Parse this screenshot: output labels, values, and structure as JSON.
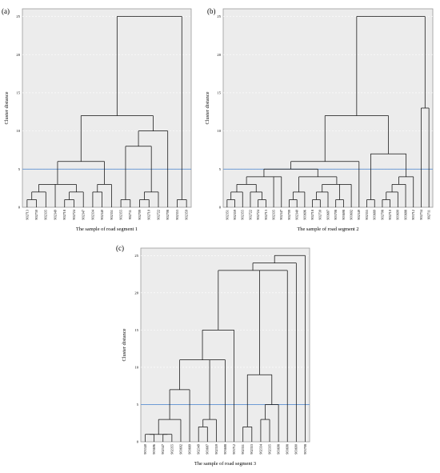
{
  "chart_data": [
    {
      "panel": "(a)",
      "type": "dendrogram",
      "title": "",
      "xlabel": "The sample of road segment 1",
      "ylabel": "Cluster distance",
      "ylim": [
        0,
        26
      ],
      "yticks": [
        0,
        5,
        10,
        15,
        20,
        25
      ],
      "cut_line": 5,
      "leaves": [
        "902713",
        "902730",
        "902335",
        "902349",
        "902718",
        "902724",
        "902347",
        "902334",
        "902340",
        "902351",
        "902355",
        "902711",
        "902709",
        "902710",
        "902722",
        "902708",
        "902353",
        "902359"
      ],
      "merges": [
        {
          "height": 1,
          "groups": [
            [
              0,
              0
            ],
            [
              1,
              1
            ]
          ]
        },
        {
          "height": 2,
          "groups": [
            [
              2,
              2
            ],
            [
              0,
              1
            ]
          ]
        },
        {
          "height": 1,
          "groups": [
            [
              4,
              4
            ],
            [
              5,
              5
            ]
          ]
        },
        {
          "height": 2,
          "groups": [
            [
              4,
              5
            ],
            [
              6,
              6
            ]
          ]
        },
        {
          "height": 3,
          "groups": [
            [
              0,
              2
            ],
            [
              3,
              3
            ],
            [
              4,
              6
            ]
          ]
        },
        {
          "height": 2,
          "groups": [
            [
              7,
              7
            ],
            [
              8,
              8
            ]
          ]
        },
        {
          "height": 3,
          "groups": [
            [
              7,
              8
            ],
            [
              9,
              9
            ]
          ]
        },
        {
          "height": 6,
          "groups": [
            [
              0,
              6
            ],
            [
              7,
              9
            ]
          ]
        },
        {
          "height": 1,
          "groups": [
            [
              12,
              12
            ],
            [
              13,
              13
            ]
          ]
        },
        {
          "height": 2,
          "groups": [
            [
              12,
              13
            ],
            [
              14,
              14
            ]
          ]
        },
        {
          "height": 1,
          "groups": [
            [
              10,
              10
            ],
            [
              11,
              11
            ]
          ]
        },
        {
          "height": 8,
          "groups": [
            [
              10,
              11
            ],
            [
              12,
              14
            ]
          ]
        },
        {
          "height": 10,
          "groups": [
            [
              10,
              14
            ],
            [
              15,
              15
            ]
          ]
        },
        {
          "height": 12,
          "groups": [
            [
              0,
              9
            ],
            [
              10,
              15
            ]
          ]
        },
        {
          "height": 1,
          "groups": [
            [
              16,
              16
            ],
            [
              17,
              17
            ]
          ]
        },
        {
          "height": 25,
          "groups": [
            [
              0,
              15
            ],
            [
              16,
              17
            ]
          ]
        }
      ]
    },
    {
      "panel": "(b)",
      "type": "dendrogram",
      "title": "",
      "xlabel": "The sample of road segment 2",
      "ylabel": "Cluster distance",
      "ylim": [
        0,
        26
      ],
      "yticks": [
        0,
        5,
        10,
        15,
        20,
        25
      ],
      "cut_line": 5,
      "leaves": [
        "902351",
        "902359",
        "902355",
        "902722",
        "902724",
        "902713",
        "902335",
        "902347",
        "902709",
        "902340",
        "903696",
        "902718",
        "902730",
        "903687",
        "903708",
        "903698",
        "903692",
        "902349",
        "902355",
        "903689",
        "902708",
        "902710",
        "903690",
        "903688",
        "903712",
        "902734",
        "902711"
      ],
      "merges": [
        {
          "height": 1,
          "groups": [
            [
              0,
              0
            ],
            [
              1,
              1
            ]
          ]
        },
        {
          "height": 2,
          "groups": [
            [
              0,
              1
            ],
            [
              2,
              2
            ]
          ]
        },
        {
          "height": 1,
          "groups": [
            [
              4,
              4
            ],
            [
              5,
              5
            ]
          ]
        },
        {
          "height": 2,
          "groups": [
            [
              3,
              3
            ],
            [
              4,
              5
            ]
          ]
        },
        {
          "height": 3,
          "groups": [
            [
              0,
              2
            ],
            [
              3,
              5
            ]
          ]
        },
        {
          "height": 4,
          "groups": [
            [
              0,
              5
            ],
            [
              6,
              6
            ],
            [
              7,
              7
            ]
          ]
        },
        {
          "height": 1,
          "groups": [
            [
              8,
              8
            ],
            [
              9,
              9
            ]
          ]
        },
        {
          "height": 2,
          "groups": [
            [
              8,
              9
            ],
            [
              10,
              10
            ]
          ]
        },
        {
          "height": 1,
          "groups": [
            [
              11,
              11
            ],
            [
              12,
              12
            ]
          ]
        },
        {
          "height": 2,
          "groups": [
            [
              11,
              12
            ],
            [
              13,
              13
            ]
          ]
        },
        {
          "height": 1,
          "groups": [
            [
              14,
              14
            ],
            [
              15,
              15
            ]
          ]
        },
        {
          "height": 3,
          "groups": [
            [
              11,
              13
            ],
            [
              14,
              15
            ],
            [
              16,
              16
            ]
          ]
        },
        {
          "height": 4,
          "groups": [
            [
              8,
              10
            ],
            [
              11,
              16
            ]
          ]
        },
        {
          "height": 5,
          "groups": [
            [
              0,
              7
            ],
            [
              8,
              16
            ]
          ]
        },
        {
          "height": 6,
          "groups": [
            [
              0,
              16
            ],
            [
              17,
              17
            ]
          ]
        },
        {
          "height": 1,
          "groups": [
            [
              18,
              18
            ],
            [
              19,
              19
            ]
          ]
        },
        {
          "height": 1,
          "groups": [
            [
              20,
              20
            ],
            [
              21,
              21
            ]
          ]
        },
        {
          "height": 2,
          "groups": [
            [
              20,
              21
            ],
            [
              22,
              22
            ]
          ]
        },
        {
          "height": 3,
          "groups": [
            [
              20,
              22
            ],
            [
              23,
              23
            ]
          ]
        },
        {
          "height": 4,
          "groups": [
            [
              20,
              23
            ],
            [
              24,
              24
            ]
          ]
        },
        {
          "height": 7,
          "groups": [
            [
              18,
              19
            ],
            [
              20,
              24
            ]
          ]
        },
        {
          "height": 12,
          "groups": [
            [
              0,
              17
            ],
            [
              18,
              24
            ]
          ]
        },
        {
          "height": 13,
          "groups": [
            [
              25,
              25
            ],
            [
              26,
              26
            ]
          ]
        },
        {
          "height": 25,
          "groups": [
            [
              0,
              24
            ],
            [
              25,
              26
            ]
          ]
        }
      ]
    },
    {
      "panel": "(c)",
      "type": "dendrogram",
      "title": "",
      "xlabel": "The sample of road segment 3",
      "ylabel": "Cluster distance",
      "ylim": [
        0,
        26
      ],
      "yticks": [
        0,
        5,
        10,
        15,
        20,
        25
      ],
      "cut_line": 5,
      "leaves": [
        "903340",
        "903696",
        "902347",
        "902355",
        "903692",
        "903689",
        "902349",
        "903687",
        "902359",
        "903688",
        "903712",
        "902351",
        "902353",
        "902334",
        "902335",
        "903698",
        "903698",
        "903690",
        "903708"
      ],
      "merges": [
        {
          "height": 1,
          "groups": [
            [
              0,
              0
            ],
            [
              1,
              1
            ]
          ]
        },
        {
          "height": 1,
          "groups": [
            [
              2,
              2
            ],
            [
              3,
              3
            ]
          ]
        },
        {
          "height": 1,
          "groups": [
            [
              0,
              1
            ],
            [
              2,
              3
            ]
          ]
        },
        {
          "height": 3,
          "groups": [
            [
              0,
              3
            ],
            [
              4,
              4
            ]
          ]
        },
        {
          "height": 7,
          "groups": [
            [
              0,
              4
            ],
            [
              5,
              5
            ]
          ]
        },
        {
          "height": 2,
          "groups": [
            [
              6,
              6
            ],
            [
              7,
              7
            ]
          ]
        },
        {
          "height": 3,
          "groups": [
            [
              6,
              7
            ],
            [
              8,
              8
            ]
          ]
        },
        {
          "height": 11,
          "groups": [
            [
              0,
              5
            ],
            [
              6,
              8
            ],
            [
              9,
              9
            ]
          ]
        },
        {
          "height": 15,
          "groups": [
            [
              0,
              9
            ],
            [
              10,
              10
            ]
          ]
        },
        {
          "height": 2,
          "groups": [
            [
              11,
              11
            ],
            [
              12,
              12
            ]
          ]
        },
        {
          "height": 3,
          "groups": [
            [
              13,
              13
            ],
            [
              14,
              14
            ]
          ]
        },
        {
          "height": 5,
          "groups": [
            [
              13,
              14
            ],
            [
              15,
              15
            ]
          ]
        },
        {
          "height": 9,
          "groups": [
            [
              11,
              12
            ],
            [
              13,
              15
            ]
          ]
        },
        {
          "height": 23,
          "groups": [
            [
              0,
              10
            ],
            [
              11,
              15
            ],
            [
              16,
              16
            ]
          ]
        },
        {
          "height": 24,
          "groups": [
            [
              0,
              16
            ],
            [
              17,
              17
            ]
          ]
        },
        {
          "height": 25,
          "groups": [
            [
              0,
              17
            ],
            [
              18,
              18
            ]
          ]
        }
      ]
    }
  ]
}
